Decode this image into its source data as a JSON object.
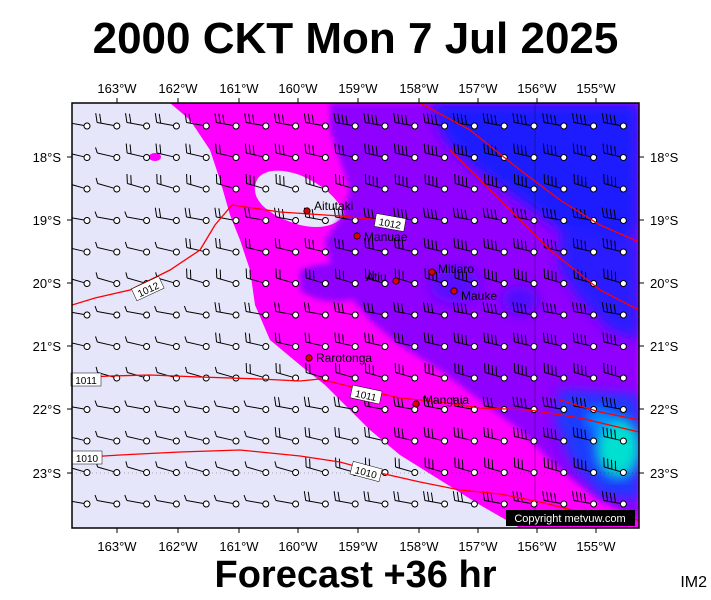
{
  "header": {
    "title": "2000 CKT Mon 7 Jul 2025"
  },
  "footer": {
    "forecast": "Forecast +36 hr",
    "code": "IM2"
  },
  "copyright": "Copyright metvuw.com",
  "axes": {
    "lon_labels": [
      "163°W",
      "162°W",
      "161°W",
      "160°W",
      "159°W",
      "158°W",
      "157°W",
      "156°W",
      "155°W"
    ],
    "lat_labels": [
      "18°S",
      "19°S",
      "20°S",
      "21°S",
      "22°S",
      "23°S"
    ]
  },
  "places": [
    {
      "name": "Aitutaki"
    },
    {
      "name": "Manuae"
    },
    {
      "name": "Atiu"
    },
    {
      "name": "Mitiaro"
    },
    {
      "name": "Mauke"
    },
    {
      "name": "Rarotonga"
    },
    {
      "name": "Mangaia"
    }
  ],
  "isobars": [
    {
      "label": "1012"
    },
    {
      "label": "1012"
    },
    {
      "label": "1011"
    },
    {
      "label": "1011"
    },
    {
      "label": "1010"
    },
    {
      "label": "1010"
    }
  ],
  "colors": {
    "calm": "#e6e6fa",
    "magenta": "#ff00ff",
    "purple": "#8f00ff",
    "blue": "#1a1aff",
    "cyan": "#00e0d0",
    "isobar": "#ff0000",
    "place_dot": "#dd0000"
  }
}
